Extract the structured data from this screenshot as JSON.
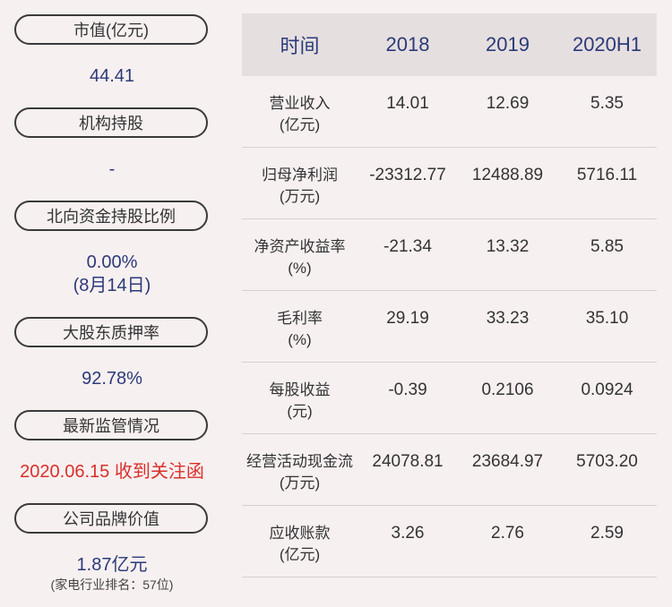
{
  "left_panel": {
    "market_cap": {
      "label": "市值(亿元)",
      "value": "44.41"
    },
    "institutional": {
      "label": "机构持股",
      "value": "-"
    },
    "northbound": {
      "label": "北向资金持股比例",
      "value": "0.00%",
      "date": "(8月14日)"
    },
    "pledge": {
      "label": "大股东质押率",
      "value": "92.78%"
    },
    "regulatory": {
      "label": "最新监管情况",
      "value": "2020.06.15 收到关注函"
    },
    "brand": {
      "label": "公司品牌价值",
      "value": "1.87亿元",
      "rank": "(家电行业排名：57位)"
    }
  },
  "table": {
    "headers": [
      "时间",
      "2018",
      "2019",
      "2020H1"
    ],
    "rows": [
      {
        "label1": "营业收入",
        "label2": "(亿元)",
        "values": [
          "14.01",
          "12.69",
          "5.35"
        ]
      },
      {
        "label1": "归母净利润",
        "label2": "(万元)",
        "values": [
          "-23312.77",
          "12488.89",
          "5716.11"
        ]
      },
      {
        "label1": "净资产收益率",
        "label2": "(%)",
        "values": [
          "-21.34",
          "13.32",
          "5.85"
        ]
      },
      {
        "label1": "毛利率",
        "label2": "(%)",
        "values": [
          "29.19",
          "33.23",
          "35.10"
        ]
      },
      {
        "label1": "每股收益",
        "label2": "(元)",
        "values": [
          "-0.39",
          "0.2106",
          "0.0924"
        ]
      },
      {
        "label1": "经营活动现金流",
        "label2": "(万元)",
        "values": [
          "24078.81",
          "23684.97",
          "5703.20"
        ]
      },
      {
        "label1": "应收账款",
        "label2": "(亿元)",
        "values": [
          "3.26",
          "2.76",
          "2.59"
        ]
      }
    ]
  },
  "colors": {
    "background": "#f7f0f0",
    "header_bg": "#e6dfdf",
    "accent_blue": "#2b3a7a",
    "alert_red": "#d9302a"
  }
}
